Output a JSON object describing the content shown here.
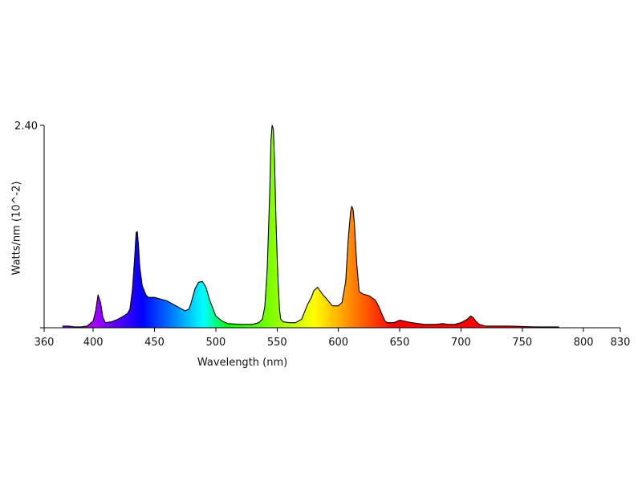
{
  "chart_data": {
    "type": "area",
    "title": "",
    "xlabel": "Wavelength (nm)",
    "ylabel": "Watts/nm (10^-2)",
    "xlim": [
      360,
      830
    ],
    "ylim": [
      0,
      2.4
    ],
    "x_ticks": [
      360,
      400,
      450,
      500,
      550,
      600,
      650,
      700,
      750,
      800,
      830
    ],
    "y_ticks": [
      {
        "value": 2.4,
        "label": "2.40"
      }
    ],
    "grid": false,
    "legend": "none",
    "fill": "spectral gradient (violet to red by wavelength)",
    "series": [
      {
        "x": [
          375,
          380,
          385,
          390,
          395,
          400,
          402,
          404,
          406,
          408,
          410,
          415,
          420,
          425,
          428,
          430,
          432,
          434,
          435,
          436,
          437,
          438,
          440,
          443,
          445,
          450,
          455,
          460,
          465,
          470,
          475,
          478,
          480,
          483,
          486,
          489,
          492,
          495,
          500,
          505,
          510,
          520,
          530,
          535,
          538,
          540,
          542,
          544,
          545,
          546,
          547,
          548,
          549,
          550,
          551,
          552,
          553,
          555,
          560,
          565,
          570,
          575,
          578,
          580,
          583,
          585,
          588,
          590,
          595,
          600,
          603,
          606,
          608,
          610,
          611,
          612,
          613,
          615,
          617,
          620,
          625,
          630,
          633,
          635,
          638,
          640,
          645,
          650,
          660,
          670,
          680,
          685,
          690,
          695,
          700,
          705,
          708,
          710,
          712,
          715,
          720,
          740,
          760,
          780
        ],
        "y": [
          0.02,
          0.02,
          0.01,
          0.01,
          0.02,
          0.08,
          0.2,
          0.39,
          0.3,
          0.12,
          0.06,
          0.07,
          0.1,
          0.14,
          0.17,
          0.22,
          0.45,
          0.86,
          1.13,
          1.14,
          0.97,
          0.72,
          0.5,
          0.39,
          0.36,
          0.36,
          0.34,
          0.32,
          0.28,
          0.24,
          0.2,
          0.22,
          0.3,
          0.46,
          0.54,
          0.55,
          0.48,
          0.33,
          0.14,
          0.08,
          0.05,
          0.04,
          0.04,
          0.06,
          0.1,
          0.25,
          0.7,
          1.6,
          2.22,
          2.4,
          2.35,
          1.95,
          1.35,
          0.85,
          0.5,
          0.22,
          0.1,
          0.07,
          0.06,
          0.06,
          0.1,
          0.28,
          0.36,
          0.44,
          0.48,
          0.44,
          0.38,
          0.35,
          0.26,
          0.26,
          0.3,
          0.55,
          1.05,
          1.38,
          1.44,
          1.4,
          1.25,
          0.75,
          0.43,
          0.4,
          0.38,
          0.33,
          0.25,
          0.18,
          0.08,
          0.06,
          0.06,
          0.09,
          0.06,
          0.04,
          0.04,
          0.05,
          0.04,
          0.04,
          0.06,
          0.1,
          0.14,
          0.12,
          0.08,
          0.04,
          0.02,
          0.02,
          0.01,
          0.01
        ]
      }
    ]
  }
}
